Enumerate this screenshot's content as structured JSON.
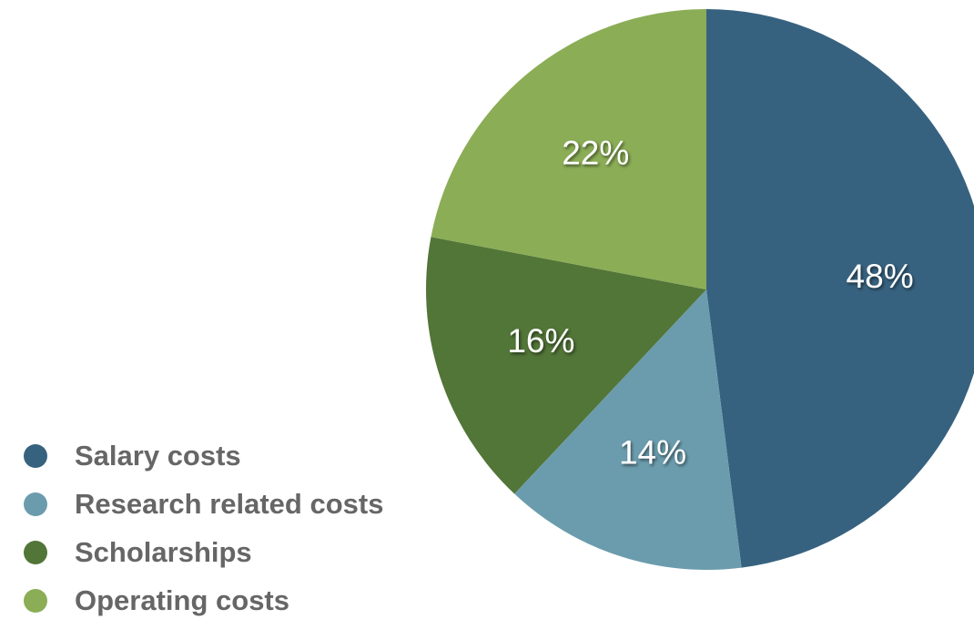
{
  "chart_data": {
    "type": "pie",
    "categories": [
      "Salary costs",
      "Research related costs",
      "Scholarships",
      "Operating costs"
    ],
    "values": [
      48,
      14,
      16,
      22
    ],
    "value_labels": [
      "48%",
      "14%",
      "16%",
      "22%"
    ],
    "colors": [
      "#37627F",
      "#6B9CAD",
      "#527538",
      "#8BAD56"
    ],
    "start_angle_deg": 0,
    "direction": "clockwise",
    "legend_placement": "bottom-left"
  }
}
